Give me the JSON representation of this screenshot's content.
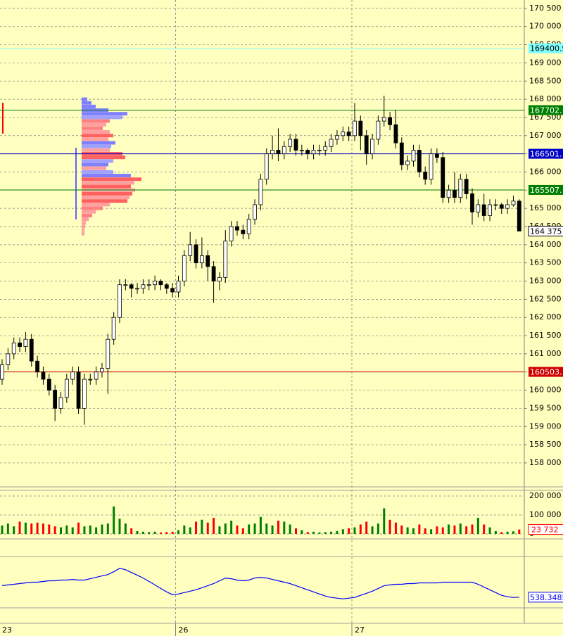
{
  "chart_data": {
    "type": "candlestick",
    "categories": [
      "23",
      null,
      null,
      null,
      null,
      null,
      null,
      null,
      null,
      null,
      null,
      null,
      null,
      null,
      null,
      null,
      null,
      null,
      null,
      null,
      null,
      null,
      null,
      null,
      null,
      null,
      null,
      null,
      null,
      null,
      "26",
      null,
      null,
      null,
      null,
      null,
      null,
      null,
      null,
      null,
      null,
      null,
      null,
      null,
      null,
      null,
      null,
      null,
      null,
      null,
      null,
      null,
      null,
      null,
      null,
      null,
      null,
      null,
      null,
      null,
      "27",
      null,
      null,
      null,
      null,
      null,
      null,
      null,
      null,
      null,
      null,
      null,
      null,
      null,
      null,
      null,
      null,
      null,
      null,
      null,
      null,
      null,
      null,
      null,
      null,
      null,
      null,
      null,
      null
    ],
    "open": [
      160300,
      160700,
      161000,
      161300,
      161200,
      161400,
      160800,
      160500,
      160300,
      160000,
      159500,
      159800,
      160300,
      160500,
      159500,
      160300,
      160300,
      160500,
      160600,
      161400,
      162000,
      162900,
      162900,
      162800,
      162800,
      162900,
      162900,
      163000,
      162900,
      162800,
      162700,
      163000,
      163700,
      164000,
      163500,
      163700,
      163400,
      163000,
      163100,
      164100,
      164500,
      164400,
      164300,
      164700,
      165100,
      165800,
      166500,
      166600,
      166500,
      166700,
      166900,
      166600,
      166600,
      166500,
      166600,
      166600,
      166700,
      166900,
      167000,
      167100,
      167000,
      167400,
      167000,
      166500,
      166900,
      167400,
      167500,
      167300,
      166800,
      166200,
      166300,
      166600,
      166000,
      165800,
      166500,
      166400,
      165300,
      165500,
      165300,
      165800,
      165400,
      164900,
      165100,
      164800,
      165100,
      165100,
      165000,
      165100,
      165200
    ],
    "high": [
      160850,
      161150,
      161450,
      161450,
      161600,
      161550,
      160950,
      160650,
      160450,
      160150,
      159950,
      160450,
      160650,
      160650,
      160450,
      160450,
      160650,
      160750,
      161550,
      162150,
      163050,
      163050,
      162950,
      162950,
      163050,
      163050,
      163150,
      163050,
      162950,
      162950,
      163150,
      163850,
      164350,
      164150,
      164200,
      163850,
      163550,
      163250,
      164400,
      164650,
      164650,
      164550,
      164850,
      165250,
      165950,
      166650,
      167000,
      167200,
      166850,
      167050,
      167050,
      166750,
      166650,
      166750,
      166750,
      166850,
      167050,
      167150,
      167250,
      167250,
      167900,
      167550,
      167150,
      167050,
      167550,
      168100,
      167650,
      167700,
      166950,
      166450,
      166750,
      166750,
      166150,
      166650,
      166650,
      166550,
      165650,
      166000,
      165950,
      165950,
      165550,
      165250,
      165400,
      165250,
      165250,
      165150,
      165250,
      165350,
      165250
    ],
    "low": [
      160150,
      160550,
      160850,
      161050,
      161050,
      160650,
      160350,
      160150,
      159850,
      159150,
      159350,
      159650,
      160150,
      159350,
      159050,
      160150,
      160150,
      160350,
      159900,
      161250,
      161850,
      162750,
      162550,
      162650,
      162650,
      162750,
      162750,
      162750,
      162650,
      162550,
      162550,
      162850,
      163550,
      163350,
      163350,
      163000,
      162400,
      162750,
      162950,
      163950,
      164250,
      164150,
      164150,
      164550,
      164950,
      165650,
      166350,
      166300,
      166350,
      166550,
      166450,
      166450,
      166350,
      166350,
      166450,
      166450,
      166550,
      166750,
      166850,
      166850,
      166850,
      166600,
      166200,
      166350,
      166750,
      167250,
      167150,
      166650,
      166050,
      166050,
      166150,
      165850,
      165650,
      165650,
      166250,
      165150,
      165150,
      165150,
      165150,
      165250,
      164550,
      164750,
      164650,
      164650,
      164950,
      164850,
      164850,
      165050,
      164375
    ],
    "close": [
      160700,
      161000,
      161300,
      161200,
      161400,
      160800,
      160500,
      160300,
      160000,
      159500,
      159800,
      160300,
      160500,
      159500,
      160300,
      160300,
      160500,
      160600,
      161400,
      162000,
      162900,
      162900,
      162800,
      162800,
      162900,
      162900,
      163000,
      162900,
      162800,
      162700,
      163000,
      163700,
      164000,
      163500,
      163700,
      163400,
      163000,
      163100,
      164100,
      164500,
      164400,
      164300,
      164700,
      165100,
      165800,
      166500,
      166600,
      166500,
      166700,
      166900,
      166600,
      166600,
      166500,
      166600,
      166600,
      166700,
      166900,
      167000,
      167100,
      167000,
      167400,
      167000,
      166500,
      166900,
      167400,
      167500,
      167300,
      166800,
      166200,
      166300,
      166600,
      166000,
      165800,
      166500,
      166400,
      165300,
      165500,
      165300,
      165800,
      165400,
      164900,
      165100,
      164800,
      165100,
      165100,
      165000,
      165100,
      165200,
      164375
    ],
    "last_label": "164 375",
    "ylim": [
      157380,
      170730
    ],
    "yticks": [
      {
        "value": 170500,
        "label": "170 500"
      },
      {
        "value": 170000,
        "label": "170 000"
      },
      {
        "value": 169500,
        "label": "169 500"
      },
      {
        "value": 169000,
        "label": "169 000"
      },
      {
        "value": 168500,
        "label": "168 500"
      },
      {
        "value": 168000,
        "label": "168 000"
      },
      {
        "value": 167500,
        "label": "167 500"
      },
      {
        "value": 167000,
        "label": "167 000"
      },
      {
        "value": 166500,
        "label": "166 500"
      },
      {
        "value": 166000,
        "label": "166 000"
      },
      {
        "value": 165500,
        "label": "165 500"
      },
      {
        "value": 165000,
        "label": "165 000"
      },
      {
        "value": 164500,
        "label": "164 500"
      },
      {
        "value": 164000,
        "label": "164 000"
      },
      {
        "value": 163500,
        "label": "163 500"
      },
      {
        "value": 163000,
        "label": "163 000"
      },
      {
        "value": 162500,
        "label": "162 500"
      },
      {
        "value": 162000,
        "label": "162 000"
      },
      {
        "value": 161500,
        "label": "161 500"
      },
      {
        "value": 161000,
        "label": "161 000"
      },
      {
        "value": 160500,
        "label": "160 500"
      },
      {
        "value": 160000,
        "label": "160 000"
      },
      {
        "value": 159500,
        "label": "159 500"
      },
      {
        "value": 159000,
        "label": "159 000"
      },
      {
        "value": 158500,
        "label": "158 500"
      },
      {
        "value": 158000,
        "label": "158 000"
      }
    ],
    "grid": true,
    "levels": [
      {
        "value": 169400.9,
        "label": "169400.9",
        "color": "#80ffff",
        "text_color": "#000000"
      },
      {
        "value": 167702,
        "label": "167702.",
        "color": "#008000",
        "text_color": "#ffffff"
      },
      {
        "value": 166501,
        "label": "166501.",
        "color": "#0000c8",
        "text_color": "#ffffff"
      },
      {
        "value": 165507,
        "label": "165507.",
        "color": "#008000",
        "text_color": "#ffffff"
      },
      {
        "value": 160503,
        "label": "160503.",
        "color": "#d00000",
        "text_color": "#ffffff"
      }
    ],
    "profile": {
      "prices": [
        168000,
        167900,
        167800,
        167700,
        167600,
        167500,
        167400,
        167300,
        167200,
        167100,
        167000,
        166900,
        166800,
        166700,
        166600,
        166500,
        166400,
        166300,
        166200,
        166100,
        166000,
        165900,
        165800,
        165700,
        165600,
        165500,
        165400,
        165300,
        165200,
        165100,
        165000,
        164900,
        164800,
        164700,
        164600,
        164500,
        164400,
        164300
      ],
      "values": [
        8,
        14,
        20,
        38,
        65,
        58,
        40,
        35,
        30,
        40,
        45,
        38,
        48,
        42,
        40,
        58,
        62,
        45,
        38,
        35,
        45,
        70,
        85,
        75,
        70,
        76,
        72,
        68,
        65,
        40,
        30,
        20,
        15,
        10,
        6,
        5,
        4,
        4
      ],
      "colors": [
        "#8080ff",
        "#8080ff",
        "#8080ff",
        "#8080ff",
        "#8080ff",
        "#a0a0ff",
        "#ff8080",
        "#ffa0a0",
        "#ff8080",
        "#ffa0a0",
        "#ff6060",
        "#ffa0a0",
        "#8080ff",
        "#a0a0ff",
        "#ffa0a0",
        "#ff6060",
        "#ff6060",
        "#a0a0ff",
        "#8080ff",
        "#ffa0a0",
        "#a0a0ff",
        "#8080ff",
        "#ff6060",
        "#ffa0a0",
        "#ff6060",
        "#ffa0a0",
        "#ff6060",
        "#ffa0a0",
        "#ff6060",
        "#ffa0a0",
        "#ff8080",
        "#ffa0a0",
        "#ff8080",
        "#ffa0a0",
        "#ffa0a0",
        "#ffa0a0",
        "#ffa0a0",
        "#ffa0a0"
      ],
      "xlim": [
        0,
        100
      ]
    },
    "volume": {
      "values": [
        45000,
        55000,
        40000,
        65000,
        60000,
        55000,
        60000,
        55000,
        50000,
        40000,
        35000,
        45000,
        35000,
        60000,
        40000,
        45000,
        35000,
        50000,
        55000,
        145000,
        80000,
        55000,
        30000,
        15000,
        12000,
        10000,
        12000,
        8000,
        10000,
        12000,
        20000,
        45000,
        35000,
        65000,
        75000,
        60000,
        85000,
        40000,
        55000,
        70000,
        45000,
        30000,
        50000,
        55000,
        90000,
        55000,
        45000,
        70000,
        65000,
        50000,
        30000,
        20000,
        10000,
        12000,
        8000,
        10000,
        12000,
        15000,
        25000,
        30000,
        35000,
        50000,
        65000,
        40000,
        55000,
        135000,
        75000,
        60000,
        45000,
        35000,
        30000,
        50000,
        30000,
        25000,
        40000,
        35000,
        50000,
        45000,
        55000,
        40000,
        50000,
        85000,
        50000,
        35000,
        15000,
        10000,
        12000,
        14000,
        23732
      ],
      "last_label": "23 732",
      "up_color": "#008000",
      "down_color": "#ff0000",
      "ylim": [
        0,
        218500
      ],
      "yticks": [
        {
          "value": 200000,
          "label": "200 000"
        },
        {
          "value": 100000,
          "label": "100 000"
        },
        0
      ]
    },
    "indicator": {
      "values": [
        555,
        556,
        557,
        558,
        559,
        560,
        560,
        561,
        562,
        562,
        563,
        563,
        564,
        563,
        563,
        565,
        567,
        569,
        571,
        575,
        580,
        578,
        574,
        570,
        566,
        561,
        556,
        551,
        546,
        542,
        543,
        545,
        547,
        549,
        552,
        555,
        558,
        562,
        566,
        565,
        563,
        562,
        563,
        566,
        567,
        566,
        564,
        562,
        560,
        558,
        555,
        552,
        549,
        546,
        543,
        540,
        538,
        537,
        536,
        537,
        538,
        541,
        544,
        547,
        551,
        555,
        556,
        557,
        557,
        558,
        558,
        559,
        559,
        559,
        559,
        560,
        560,
        560,
        560,
        560,
        560,
        557,
        553,
        549,
        545,
        541,
        539,
        538,
        538.3485
      ],
      "color": "#0000ff",
      "ylim": [
        525,
        595
      ]
    }
  }
}
